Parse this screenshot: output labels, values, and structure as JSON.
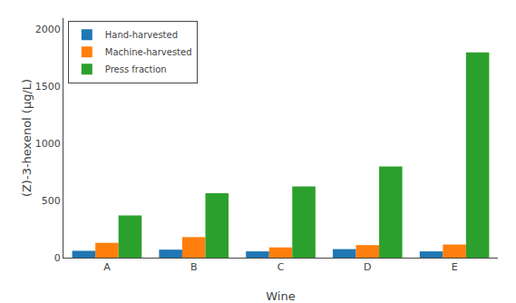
{
  "chart_data": {
    "type": "bar",
    "xlabel": "Wine",
    "ylabel": "(Z)-3-hexenol (μg/L)",
    "categories": [
      "A",
      "B",
      "C",
      "D",
      "E"
    ],
    "series": [
      {
        "name": "Hand-harvested",
        "values": [
          60,
          70,
          55,
          75,
          55
        ]
      },
      {
        "name": "Machine-harvested",
        "values": [
          130,
          180,
          90,
          110,
          115
        ]
      },
      {
        "name": "Press fraction",
        "values": [
          370,
          565,
          625,
          800,
          1800
        ]
      }
    ],
    "ylim": [
      0,
      2100
    ],
    "yticks": [
      0,
      500,
      1000,
      1500,
      2000
    ],
    "grid": false,
    "legend": "upper left"
  }
}
